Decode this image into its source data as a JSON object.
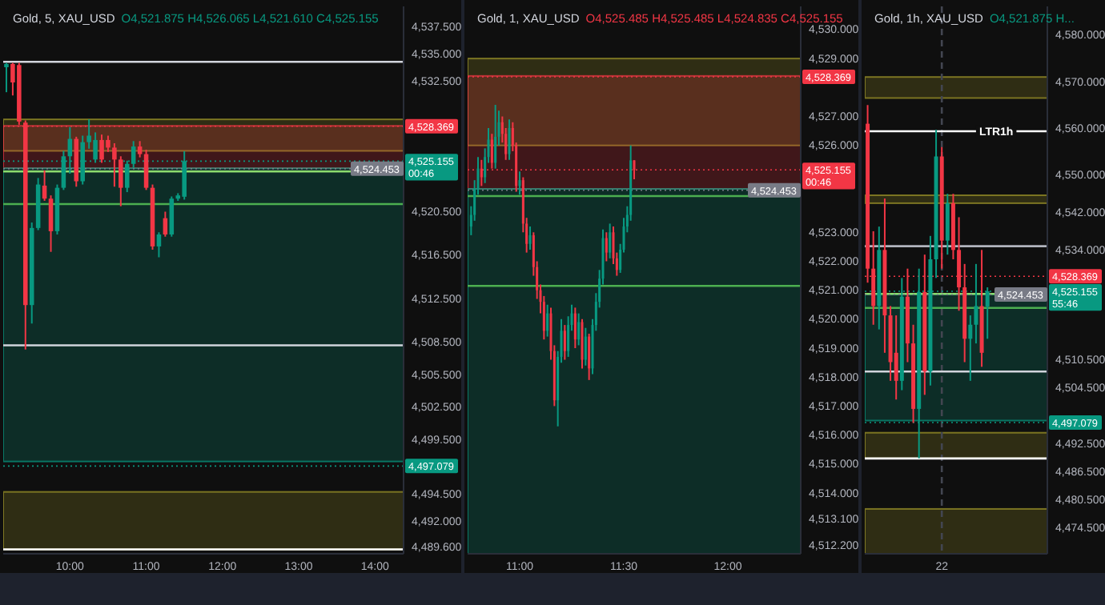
{
  "chart_data": [
    {
      "type": "candlestick",
      "title": "Gold, 5, XAU_USD",
      "subtitle": "O4,521.875 H4,526.065 L4,521.610 C4,525.155",
      "x": [
        9.1667,
        9.25,
        9.3333,
        9.4167,
        9.5,
        9.5833,
        9.6667,
        9.75,
        9.8333,
        9.9167,
        10,
        10.0833,
        10.1667,
        10.25,
        10.3333,
        10.4167,
        10.5,
        10.5833,
        10.6667,
        10.75,
        10.8333,
        10.9167,
        11,
        11.0833,
        11.1667,
        11.25,
        11.3333,
        11.4167,
        11.5
      ],
      "ohlc": [
        [
          4533.8,
          4534.2,
          4531.5,
          4534.1
        ],
        [
          4534.1,
          4534.2,
          4531.2,
          4532.4
        ],
        [
          4534.0,
          4534.2,
          4528.5,
          4528.8
        ],
        [
          4528.7,
          4528.9,
          4507.8,
          4511.9
        ],
        [
          4511.9,
          4519.5,
          4510.2,
          4519.0
        ],
        [
          4519.0,
          4523.6,
          4518.8,
          4523.0
        ],
        [
          4522.9,
          4524.3,
          4521.5,
          4521.7
        ],
        [
          4521.7,
          4522.0,
          4516.8,
          4518.7
        ],
        [
          4518.7,
          4523.0,
          4518.4,
          4522.7
        ],
        [
          4522.7,
          4526.1,
          4522.5,
          4525.6
        ],
        [
          4525.6,
          4528.3,
          4524.0,
          4527.2
        ],
        [
          4527.2,
          4527.4,
          4522.8,
          4523.3
        ],
        [
          4523.3,
          4527.5,
          4523.0,
          4526.9
        ],
        [
          4526.9,
          4529.0,
          4526.3,
          4527.5
        ],
        [
          4525.3,
          4527.8,
          4525.0,
          4527.1
        ],
        [
          4527.1,
          4527.6,
          4525.0,
          4525.3
        ],
        [
          4527.1,
          4527.5,
          4526.0,
          4526.4
        ],
        [
          4526.4,
          4526.8,
          4522.8,
          4525.3
        ],
        [
          4525.3,
          4525.6,
          4521.0,
          4522.7
        ],
        [
          4522.7,
          4525.2,
          4522.3,
          4524.9
        ],
        [
          4524.9,
          4527.0,
          4524.5,
          4526.5
        ],
        [
          4526.5,
          4527.0,
          4525.5,
          4525.8
        ],
        [
          4525.8,
          4526.2,
          4522.5,
          4522.7
        ],
        [
          4522.7,
          4523.0,
          4517.0,
          4517.3
        ],
        [
          4517.3,
          4518.6,
          4516.3,
          4518.4
        ],
        [
          4519.9,
          4520.5,
          4518.2,
          4518.4
        ],
        [
          4518.4,
          4521.9,
          4518.2,
          4521.7
        ],
        [
          4521.7,
          4522.2,
          4521.5,
          4522.0
        ],
        [
          4521.875,
          4526.065,
          4521.61,
          4525.155
        ]
      ],
      "xlim": [
        9.125,
        14.375
      ],
      "xticks": [
        {
          "value": 10,
          "label": "10:00"
        },
        {
          "value": 11,
          "label": "11:00"
        },
        {
          "value": 12,
          "label": "12:00"
        },
        {
          "value": 13,
          "label": "13:00"
        },
        {
          "value": 14,
          "label": "14:00"
        }
      ],
      "ylim": [
        4489.0,
        4539.4
      ],
      "yticks": [
        {
          "value": 4537.5,
          "label": "4,537.500"
        },
        {
          "value": 4535,
          "label": "4,535.000"
        },
        {
          "value": 4532.5,
          "label": "4,532.500"
        },
        {
          "value": 4520.5,
          "label": "4,520.500"
        },
        {
          "value": 4516.5,
          "label": "4,516.500"
        },
        {
          "value": 4512.5,
          "label": "4,512.500"
        },
        {
          "value": 4508.5,
          "label": "4,508.500"
        },
        {
          "value": 4505.5,
          "label": "4,505.500"
        },
        {
          "value": 4502.5,
          "label": "4,502.500"
        },
        {
          "value": 4499.5,
          "label": "4,499.500"
        },
        {
          "value": 4494.5,
          "label": "4,494.500"
        },
        {
          "value": 4492,
          "label": "4,492.000"
        },
        {
          "value": 4489.6,
          "label": "4,489.600"
        }
      ],
      "bands": [
        {
          "axis": "y",
          "from": 4526.1,
          "to": 4529.0,
          "color": "#a39a2a"
        },
        {
          "axis": "y",
          "from": 4524.5,
          "to": 4528.4,
          "color": "#f23645"
        },
        {
          "axis": "y",
          "from": 4497.5,
          "to": 4524.5,
          "color": "#089981"
        },
        {
          "axis": "y",
          "from": 4489.4,
          "to": 4494.7,
          "color": "#a39a2a"
        }
      ],
      "ref_lines": [
        {
          "axis": "y",
          "value": 4534.3,
          "color": "#d1d4dc"
        },
        {
          "axis": "y",
          "value": 4508.2,
          "color": "#d1d4dc"
        },
        {
          "axis": "y",
          "value": 4489.4,
          "color": "#ffffff"
        },
        {
          "axis": "y",
          "value": 4524.2,
          "color": "#8bdc6e"
        },
        {
          "axis": "y",
          "value": 4521.2,
          "color": "#4caf50"
        },
        {
          "axis": "y",
          "value": 4528.369,
          "label": "4,528.369",
          "color": "#f23645",
          "line_style": "dotted"
        },
        {
          "axis": "y",
          "value": 4525.155,
          "label": "4,525.155\n00:46",
          "color": "#089981",
          "line_style": "dotted"
        },
        {
          "axis": "y",
          "value": 4524.453,
          "label": "4,524.453",
          "color": "#787b86",
          "line_style": "dotted"
        },
        {
          "axis": "y",
          "value": 4497.079,
          "label": "4,497.079",
          "color": "#089981",
          "line_style": "dotted"
        }
      ]
    },
    {
      "type": "candlestick",
      "title": "Gold, 1, XAU_USD",
      "subtitle": "O4,525.485 H4,525.485 L4,524.835 C4,525.155",
      "x": [
        10.7667,
        10.7833,
        10.8,
        10.8167,
        10.8333,
        10.85,
        10.8667,
        10.8833,
        10.9,
        10.9167,
        10.9333,
        10.95,
        10.9667,
        10.9833,
        11,
        11.0167,
        11.0333,
        11.05,
        11.0667,
        11.0833,
        11.1,
        11.1167,
        11.1333,
        11.15,
        11.1667,
        11.1833,
        11.2,
        11.2167,
        11.2333,
        11.25,
        11.2667,
        11.2833,
        11.3,
        11.3167,
        11.3333,
        11.35,
        11.3667,
        11.3833,
        11.4,
        11.4167,
        11.4333,
        11.45,
        11.4667,
        11.4833,
        11.5,
        11.5167,
        11.5333,
        11.55
      ],
      "ohlc": [
        [
          4523.2,
          4523.9,
          4522.9,
          4523.6
        ],
        [
          4523.6,
          4524.8,
          4523.4,
          4524.5
        ],
        [
          4524.5,
          4525.6,
          4524.3,
          4525.2
        ],
        [
          4525.2,
          4525.5,
          4524.6,
          4524.9
        ],
        [
          4524.9,
          4525.9,
          4524.7,
          4525.6
        ],
        [
          4525.6,
          4526.6,
          4525.4,
          4526.2
        ],
        [
          4526.2,
          4526.4,
          4525.2,
          4525.4
        ],
        [
          4525.4,
          4527.4,
          4525.2,
          4526.3
        ],
        [
          4526.3,
          4527.2,
          4526.0,
          4526.8
        ],
        [
          4526.8,
          4527.0,
          4526.1,
          4526.4
        ],
        [
          4526.4,
          4526.6,
          4525.5,
          4525.7
        ],
        [
          4525.7,
          4526.9,
          4525.5,
          4526.6
        ],
        [
          4526.6,
          4526.8,
          4525.8,
          4526.0
        ],
        [
          4526.0,
          4526.1,
          4524.4,
          4524.6
        ],
        [
          4524.6,
          4525.1,
          4524.3,
          4524.8
        ],
        [
          4524.8,
          4524.9,
          4523.0,
          4523.3
        ],
        [
          4523.3,
          4523.5,
          4522.3,
          4522.6
        ],
        [
          4522.6,
          4523.2,
          4522.4,
          4522.9
        ],
        [
          4522.9,
          4523.0,
          4521.5,
          4521.8
        ],
        [
          4521.8,
          4522.0,
          4520.7,
          4521.0
        ],
        [
          4521.0,
          4521.2,
          4520.2,
          4520.6
        ],
        [
          4520.6,
          4520.8,
          4519.3,
          4519.6
        ],
        [
          4519.6,
          4520.5,
          4519.4,
          4520.2
        ],
        [
          4520.2,
          4520.4,
          4518.6,
          4518.9
        ],
        [
          4518.9,
          4519.1,
          4517.0,
          4517.2
        ],
        [
          4517.2,
          4518.9,
          4516.3,
          4518.7
        ],
        [
          4518.7,
          4520.0,
          4518.5,
          4519.6
        ],
        [
          4519.6,
          4519.8,
          4518.6,
          4518.9
        ],
        [
          4518.9,
          4520.1,
          4518.7,
          4519.8
        ],
        [
          4519.8,
          4520.5,
          4519.6,
          4520.2
        ],
        [
          4520.2,
          4520.4,
          4519.0,
          4519.3
        ],
        [
          4519.3,
          4520.2,
          4519.1,
          4519.9
        ],
        [
          4519.9,
          4520.0,
          4518.3,
          4518.6
        ],
        [
          4518.6,
          4519.7,
          4518.4,
          4519.4
        ],
        [
          4519.4,
          4519.5,
          4517.9,
          4518.3
        ],
        [
          4518.3,
          4520.0,
          4518.1,
          4519.8
        ],
        [
          4519.8,
          4520.9,
          4519.6,
          4520.6
        ],
        [
          4520.6,
          4521.7,
          4520.4,
          4521.4
        ],
        [
          4521.4,
          4523.1,
          4521.2,
          4522.8
        ],
        [
          4522.8,
          4523.0,
          4522.0,
          4522.3
        ],
        [
          4522.3,
          4523.3,
          4522.1,
          4523.0
        ],
        [
          4523.0,
          4523.2,
          4521.9,
          4522.1
        ],
        [
          4522.1,
          4522.3,
          4521.5,
          4521.7
        ],
        [
          4521.7,
          4522.6,
          4521.6,
          4522.4
        ],
        [
          4522.4,
          4523.5,
          4522.3,
          4523.2
        ],
        [
          4523.2,
          4523.9,
          4523.0,
          4523.6
        ],
        [
          4523.6,
          4526.0,
          4523.4,
          4525.485
        ],
        [
          4525.485,
          4525.485,
          4524.835,
          4525.155
        ]
      ],
      "xlim": [
        10.75,
        12.35
      ],
      "xticks": [
        {
          "value": 11,
          "label": "11:00"
        },
        {
          "value": 11.5,
          "label": "11:30"
        },
        {
          "value": 12,
          "label": "12:00"
        }
      ],
      "ylim": [
        4511.9,
        4530.8
      ],
      "yticks": [
        {
          "value": 4530,
          "label": "4,530.000"
        },
        {
          "value": 4529,
          "label": "4,529.000"
        },
        {
          "value": 4527,
          "label": "4,527.000"
        },
        {
          "value": 4526,
          "label": "4,526.000"
        },
        {
          "value": 4523,
          "label": "4,523.000"
        },
        {
          "value": 4522,
          "label": "4,522.000"
        },
        {
          "value": 4521,
          "label": "4,521.000"
        },
        {
          "value": 4520,
          "label": "4,520.000"
        },
        {
          "value": 4519,
          "label": "4,519.000"
        },
        {
          "value": 4518,
          "label": "4,518.000"
        },
        {
          "value": 4517,
          "label": "4,517.000"
        },
        {
          "value": 4516,
          "label": "4,516.000"
        },
        {
          "value": 4515,
          "label": "4,515.000"
        },
        {
          "value": 4514,
          "label": "4,514.000"
        },
        {
          "value": 4513.1,
          "label": "4,513.100"
        },
        {
          "value": 4512.2,
          "label": "4,512.200"
        }
      ],
      "bands": [
        {
          "axis": "y",
          "from": 4526.0,
          "to": 4529.0,
          "color": "#a39a2a"
        },
        {
          "axis": "y",
          "from": 4524.5,
          "to": 4528.4,
          "color": "#f23645"
        },
        {
          "axis": "y",
          "from": 4511.9,
          "to": 4524.5,
          "color": "#089981"
        }
      ],
      "ref_lines": [
        {
          "axis": "y",
          "value": 4524.25,
          "color": "#4caf50"
        },
        {
          "axis": "y",
          "value": 4521.15,
          "color": "#4caf50"
        },
        {
          "axis": "y",
          "value": 4528.369,
          "label": "4,528.369",
          "color": "#f23645",
          "line_style": "dotted"
        },
        {
          "axis": "y",
          "value": 4525.155,
          "label": "4,525.155\n00:46",
          "color": "#f23645",
          "line_style": "dotted"
        },
        {
          "axis": "y",
          "value": 4524.453,
          "label": "4,524.453",
          "color": "#787b86",
          "line_style": "dotted"
        }
      ]
    },
    {
      "type": "candlestick",
      "title": "Gold, 1h, XAU_USD",
      "subtitle": "O4,521.875 H...",
      "categories": [
        null,
        null,
        null,
        null,
        null,
        null,
        null,
        null,
        null,
        null,
        null,
        null,
        null,
        "22",
        null,
        null,
        null,
        null,
        null,
        null,
        null,
        null,
        null,
        null,
        null,
        null,
        null,
        null,
        null,
        null,
        null,
        null
      ],
      "ohlc": [
        [
          4561,
          4565,
          4527,
          4530
        ],
        [
          4530,
          4538,
          4518,
          4522
        ],
        [
          4522,
          4539,
          4517,
          4534
        ],
        [
          4534,
          4545,
          4512,
          4520
        ],
        [
          4520,
          4522,
          4506,
          4510
        ],
        [
          4512,
          4520,
          4502,
          4506
        ],
        [
          4506,
          4528,
          4504,
          4524
        ],
        [
          4524,
          4530,
          4510,
          4514
        ],
        [
          4514,
          4518,
          4497,
          4500
        ],
        [
          4500,
          4530,
          4489.4,
          4525
        ],
        [
          4525,
          4533,
          4503,
          4508
        ],
        [
          4508,
          4537,
          4505,
          4532
        ],
        [
          4532,
          4559.7,
          4528,
          4554
        ],
        [
          4554,
          4556,
          4530,
          4536
        ],
        [
          4536,
          4546,
          4533,
          4544
        ],
        [
          4544,
          4546,
          4532,
          4534
        ],
        [
          4534,
          4541,
          4521,
          4526
        ],
        [
          4526,
          4531,
          4510,
          4515
        ],
        [
          4515,
          4520,
          4506,
          4518
        ],
        [
          4518,
          4531,
          4514,
          4522
        ],
        [
          4522,
          4534,
          4509,
          4512
        ],
        [
          4521.875,
          4526,
          4515,
          4525.155
        ],
        null,
        null,
        null,
        null,
        null,
        null,
        null,
        null,
        null,
        null
      ],
      "ylim": [
        4469.0,
        4586.1
      ],
      "yticks": [
        {
          "value": 4580,
          "label": "4,580.000"
        },
        {
          "value": 4570,
          "label": "4,570.000"
        },
        {
          "value": 4560,
          "label": "4,560.000"
        },
        {
          "value": 4550,
          "label": "4,550.000"
        },
        {
          "value": 4542,
          "label": "4,542.000"
        },
        {
          "value": 4534,
          "label": "4,534.000"
        },
        {
          "value": 4510.5,
          "label": "4,510.500"
        },
        {
          "value": 4504.5,
          "label": "4,504.500"
        },
        {
          "value": 4492.5,
          "label": "4,492.500"
        },
        {
          "value": 4486.5,
          "label": "4,486.500"
        },
        {
          "value": 4480.5,
          "label": "4,480.500"
        },
        {
          "value": 4474.5,
          "label": "4,474.500"
        }
      ],
      "bands": [
        {
          "axis": "y",
          "from": 4566.5,
          "to": 4571.0,
          "color": "#a39a2a"
        },
        {
          "axis": "y",
          "from": 4544.0,
          "to": 4545.7,
          "color": "#a39a2a"
        },
        {
          "axis": "y",
          "from": 4497.5,
          "to": 4524.5,
          "color": "#089981"
        },
        {
          "axis": "y",
          "from": 4489.4,
          "to": 4494.9,
          "color": "#a39a2a"
        },
        {
          "axis": "y",
          "from": 4469.0,
          "to": 4478.6,
          "color": "#a39a2a"
        }
      ],
      "ref_lines": [
        {
          "axis": "x",
          "value": "22",
          "color": "#434651",
          "line_style": "dashed"
        },
        {
          "axis": "y",
          "value": 4559.4,
          "color": "#ffffff"
        },
        {
          "axis": "y",
          "value": 4534.8,
          "color": "#b2b5be"
        },
        {
          "axis": "y",
          "value": 4508.0,
          "color": "#d1d4dc"
        },
        {
          "axis": "y",
          "value": 4489.4,
          "color": "#ffffff"
        },
        {
          "axis": "y",
          "value": 4524.6,
          "color": "#8bdc6e"
        },
        {
          "axis": "y",
          "value": 4521.6,
          "color": "#4caf50"
        },
        {
          "axis": "y",
          "value": 4528.369,
          "label": "4,528.369",
          "color": "#f23645",
          "line_style": "dotted"
        },
        {
          "axis": "y",
          "value": 4525.155,
          "label": "4,525.155\n55:46",
          "color": "#089981",
          "line_style": "dotted"
        },
        {
          "axis": "y",
          "value": 4524.453,
          "label": "4,524.453",
          "color": "#787b86",
          "line_style": "dotted"
        },
        {
          "axis": "y",
          "value": 4497.079,
          "label": "4,497.079",
          "color": "#089981",
          "line_style": "dotted"
        }
      ],
      "annotations": [
        {
          "text": "LTR1h",
          "y": 4559.4
        }
      ]
    }
  ]
}
